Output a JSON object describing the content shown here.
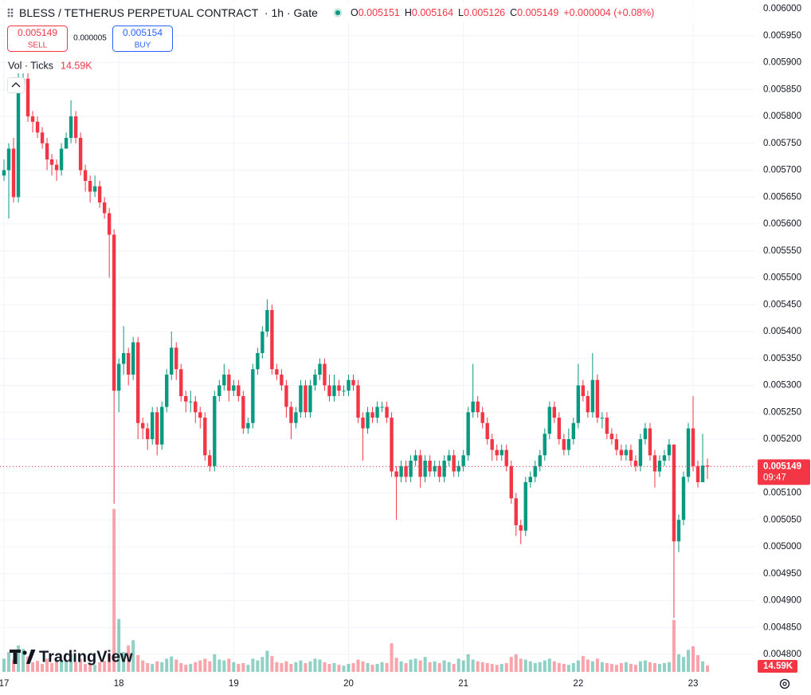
{
  "chart_data": {
    "type": "candlestick",
    "title": "BLESS / TETHERUS PERPETUAL CONTRACT",
    "interval": "1h",
    "exchange": "Gate",
    "ohlc_labels": [
      "O",
      "H",
      "L",
      "C"
    ],
    "change_label": "+0.000004 (+0.08%)",
    "sell_price": 0.005149,
    "sell_label": "SELL",
    "spread": {
      "value": 5e-06,
      "label": "0.000005"
    },
    "buy_price": 0.005154,
    "buy_label": "BUY",
    "volume_title": "Vol · Ticks",
    "countdown": "09:47",
    "watermark": "TradingView",
    "up_color": "#089981",
    "down_color": "#f23645",
    "grid": true,
    "ylim": [
      0.0048,
      0.006
    ],
    "yticks": [
      {
        "value": 0.006,
        "label": "0.006000"
      },
      {
        "value": 0.00595,
        "label": "0.005950"
      },
      {
        "value": 0.0059,
        "label": "0.005900"
      },
      {
        "value": 0.00585,
        "label": "0.005850"
      },
      {
        "value": 0.0058,
        "label": "0.005800"
      },
      {
        "value": 0.00575,
        "label": "0.005750"
      },
      {
        "value": 0.0057,
        "label": "0.005700"
      },
      {
        "value": 0.00565,
        "label": "0.005650"
      },
      {
        "value": 0.0056,
        "label": "0.005600"
      },
      {
        "value": 0.00555,
        "label": "0.005550"
      },
      {
        "value": 0.0055,
        "label": "0.005500"
      },
      {
        "value": 0.00545,
        "label": "0.005450"
      },
      {
        "value": 0.0054,
        "label": "0.005400"
      },
      {
        "value": 0.00535,
        "label": "0.005350"
      },
      {
        "value": 0.0053,
        "label": "0.005300"
      },
      {
        "value": 0.00525,
        "label": "0.005250"
      },
      {
        "value": 0.0052,
        "label": "0.005200"
      },
      {
        "value": 0.00515,
        "label": "0.005150"
      },
      {
        "value": 0.0051,
        "label": "0.005100"
      },
      {
        "value": 0.00505,
        "label": "0.005050"
      },
      {
        "value": 0.005,
        "label": "0.005000"
      },
      {
        "value": 0.00495,
        "label": "0.004950"
      },
      {
        "value": 0.0049,
        "label": "0.004900"
      },
      {
        "value": 0.00485,
        "label": "0.004850"
      },
      {
        "value": 0.0048,
        "label": "0.004800"
      }
    ],
    "categories": [
      "17",
      null,
      null,
      null,
      null,
      null,
      null,
      null,
      null,
      null,
      null,
      null,
      null,
      null,
      null,
      null,
      null,
      null,
      null,
      null,
      null,
      null,
      null,
      null,
      "18",
      null,
      null,
      null,
      null,
      null,
      null,
      null,
      null,
      null,
      null,
      null,
      null,
      null,
      null,
      null,
      null,
      null,
      null,
      null,
      null,
      null,
      null,
      null,
      "19",
      null,
      null,
      null,
      null,
      null,
      null,
      null,
      null,
      null,
      null,
      null,
      null,
      null,
      null,
      null,
      null,
      null,
      null,
      null,
      null,
      null,
      null,
      null,
      "20",
      null,
      null,
      null,
      null,
      null,
      null,
      null,
      null,
      null,
      null,
      null,
      null,
      null,
      null,
      null,
      null,
      null,
      null,
      null,
      null,
      null,
      null,
      null,
      "21",
      null,
      null,
      null,
      null,
      null,
      null,
      null,
      null,
      null,
      null,
      null,
      null,
      null,
      null,
      null,
      null,
      null,
      null,
      null,
      null,
      null,
      null,
      null,
      "22",
      null,
      null,
      null,
      null,
      null,
      null,
      null,
      null,
      null,
      null,
      null,
      null,
      null,
      null,
      null,
      null,
      null,
      null,
      null,
      null,
      null,
      null,
      null,
      "23",
      null,
      null,
      null
    ],
    "open": [
      0.00569,
      0.0057,
      0.00574,
      0.00565,
      0.00586,
      0.00587,
      0.0058,
      0.00579,
      0.00577,
      0.00575,
      0.00572,
      0.00571,
      0.0057,
      0.00574,
      0.00576,
      0.0058,
      0.00576,
      0.0057,
      0.00568,
      0.00566,
      0.00567,
      0.00564,
      0.00562,
      0.00558,
      0.00529,
      0.00534,
      0.00536,
      0.00532,
      0.00538,
      0.00523,
      0.00522,
      0.0052,
      0.00525,
      0.00519,
      0.00526,
      0.00532,
      0.00537,
      0.00533,
      0.00528,
      0.00527,
      0.00527,
      0.00525,
      0.00524,
      0.00517,
      0.00515,
      0.00528,
      0.0053,
      0.00532,
      0.00529,
      0.0053,
      0.00528,
      0.00522,
      0.00523,
      0.00533,
      0.00536,
      0.0054,
      0.00544,
      0.00533,
      0.00532,
      0.0053,
      0.00526,
      0.00523,
      0.00525,
      0.0053,
      0.00525,
      0.0053,
      0.00532,
      0.00534,
      0.0053,
      0.00528,
      0.0053,
      0.00529,
      0.00529,
      0.00531,
      0.0053,
      0.00524,
      0.00522,
      0.00525,
      0.00524,
      0.00526,
      0.00526,
      0.00524,
      0.00514,
      0.00513,
      0.00515,
      0.00513,
      0.00516,
      0.00517,
      0.00513,
      0.00516,
      0.00514,
      0.00515,
      0.00513,
      0.00516,
      0.00517,
      0.00514,
      0.00515,
      0.00517,
      0.00525,
      0.00527,
      0.00525,
      0.00523,
      0.0052,
      0.00518,
      0.00517,
      0.00518,
      0.00515,
      0.00509,
      0.00504,
      0.00503,
      0.00512,
      0.00513,
      0.00515,
      0.00517,
      0.00521,
      0.00526,
      0.00524,
      0.0052,
      0.00518,
      0.0052,
      0.00523,
      0.0053,
      0.00528,
      0.00525,
      0.00531,
      0.00524,
      0.00524,
      0.00521,
      0.0052,
      0.00518,
      0.00517,
      0.00518,
      0.00516,
      0.00515,
      0.0052,
      0.00522,
      0.00517,
      0.00514,
      0.00516,
      0.00517,
      0.00519,
      0.00501,
      0.00505,
      0.00513,
      0.00522,
      0.00515,
      0.00512,
      0.005151
    ],
    "high": [
      0.00572,
      0.00575,
      0.00576,
      0.00588,
      0.00588,
      0.00588,
      0.00581,
      0.0058,
      0.00578,
      0.00576,
      0.00573,
      0.00572,
      0.00575,
      0.00577,
      0.00583,
      0.00581,
      0.00577,
      0.00571,
      0.00569,
      0.00569,
      0.00568,
      0.00565,
      0.00563,
      0.00559,
      0.00535,
      0.00541,
      0.00537,
      0.00539,
      0.00539,
      0.00524,
      0.00523,
      0.00526,
      0.00526,
      0.00527,
      0.00533,
      0.0054,
      0.00538,
      0.00534,
      0.00529,
      0.00529,
      0.00528,
      0.00526,
      0.00525,
      0.00518,
      0.00529,
      0.00531,
      0.00534,
      0.00533,
      0.00531,
      0.00531,
      0.00529,
      0.00524,
      0.00534,
      0.00537,
      0.00541,
      0.00546,
      0.00545,
      0.00534,
      0.00533,
      0.00531,
      0.00527,
      0.00526,
      0.00531,
      0.00531,
      0.00531,
      0.00533,
      0.00535,
      0.00535,
      0.00532,
      0.00532,
      0.00531,
      0.0053,
      0.00532,
      0.00532,
      0.00531,
      0.00525,
      0.00526,
      0.00526,
      0.00527,
      0.00527,
      0.00527,
      0.00525,
      0.00515,
      0.00516,
      0.00516,
      0.00517,
      0.00518,
      0.00518,
      0.00517,
      0.00517,
      0.00516,
      0.00516,
      0.00517,
      0.00518,
      0.00518,
      0.00516,
      0.00518,
      0.00526,
      0.00534,
      0.00528,
      0.00526,
      0.00524,
      0.00521,
      0.00519,
      0.00519,
      0.00519,
      0.00516,
      0.0051,
      0.00505,
      0.00513,
      0.00514,
      0.00516,
      0.00518,
      0.00522,
      0.00527,
      0.00527,
      0.00525,
      0.00521,
      0.00522,
      0.00524,
      0.00534,
      0.00531,
      0.00529,
      0.00536,
      0.00532,
      0.00525,
      0.00525,
      0.00522,
      0.00521,
      0.00519,
      0.00519,
      0.00519,
      0.00517,
      0.00521,
      0.00523,
      0.00523,
      0.00518,
      0.00517,
      0.00518,
      0.0052,
      0.00519,
      0.00506,
      0.00514,
      0.00523,
      0.00528,
      0.00516,
      0.00521,
      0.005164
    ],
    "low": [
      0.00568,
      0.00561,
      0.00564,
      0.00564,
      0.00585,
      0.00579,
      0.00577,
      0.00576,
      0.00574,
      0.0057,
      0.00569,
      0.00568,
      0.00569,
      0.00574,
      0.00575,
      0.00575,
      0.00569,
      0.00566,
      0.00564,
      0.00565,
      0.00563,
      0.00561,
      0.0055,
      0.00508,
      0.00525,
      0.00532,
      0.0053,
      0.00531,
      0.0052,
      0.0052,
      0.00518,
      0.00519,
      0.00517,
      0.00518,
      0.00525,
      0.00531,
      0.00531,
      0.00527,
      0.00525,
      0.00525,
      0.00523,
      0.00522,
      0.00516,
      0.00514,
      0.00514,
      0.00527,
      0.00529,
      0.00527,
      0.00528,
      0.00527,
      0.00521,
      0.00521,
      0.00522,
      0.00532,
      0.00535,
      0.00539,
      0.00532,
      0.00531,
      0.00529,
      0.00524,
      0.0052,
      0.00522,
      0.00524,
      0.00524,
      0.00524,
      0.00529,
      0.00531,
      0.00529,
      0.00527,
      0.00527,
      0.00528,
      0.00528,
      0.00528,
      0.00529,
      0.00523,
      0.00516,
      0.00521,
      0.00523,
      0.00523,
      0.00525,
      0.00523,
      0.00513,
      0.00505,
      0.00512,
      0.00512,
      0.00512,
      0.00515,
      0.00511,
      0.00512,
      0.00513,
      0.00513,
      0.00512,
      0.00512,
      0.00515,
      0.00513,
      0.00513,
      0.00514,
      0.00516,
      0.00524,
      0.00524,
      0.00522,
      0.00519,
      0.00516,
      0.00516,
      0.00516,
      0.00514,
      0.00508,
      0.00502,
      0.005005,
      0.00502,
      0.00511,
      0.00512,
      0.00514,
      0.00516,
      0.0052,
      0.00523,
      0.00519,
      0.00517,
      0.00517,
      0.00519,
      0.00522,
      0.00527,
      0.00524,
      0.00524,
      0.00523,
      0.00522,
      0.0052,
      0.00519,
      0.00517,
      0.00516,
      0.00516,
      0.00515,
      0.00514,
      0.00514,
      0.00519,
      0.00516,
      0.00511,
      0.00513,
      0.00515,
      0.00516,
      0.004868,
      0.00499,
      0.00504,
      0.00512,
      0.00514,
      0.00511,
      0.00512,
      0.005126
    ],
    "close": [
      0.0057,
      0.00574,
      0.00565,
      0.00586,
      0.00587,
      0.0058,
      0.00579,
      0.00577,
      0.00575,
      0.00572,
      0.00571,
      0.0057,
      0.00574,
      0.00576,
      0.0058,
      0.00576,
      0.0057,
      0.00568,
      0.00566,
      0.00567,
      0.00564,
      0.00562,
      0.00558,
      0.00529,
      0.00534,
      0.00536,
      0.00532,
      0.00538,
      0.00523,
      0.00522,
      0.0052,
      0.00525,
      0.00519,
      0.00526,
      0.00532,
      0.00537,
      0.00533,
      0.00528,
      0.00527,
      0.00527,
      0.00525,
      0.00524,
      0.00517,
      0.00515,
      0.00528,
      0.0053,
      0.00532,
      0.00529,
      0.0053,
      0.00528,
      0.00522,
      0.00523,
      0.00533,
      0.00536,
      0.0054,
      0.00544,
      0.00533,
      0.00532,
      0.0053,
      0.00526,
      0.00523,
      0.00525,
      0.0053,
      0.00525,
      0.0053,
      0.00532,
      0.00534,
      0.0053,
      0.00528,
      0.0053,
      0.00529,
      0.00529,
      0.00531,
      0.0053,
      0.00524,
      0.00522,
      0.00525,
      0.00524,
      0.00526,
      0.00526,
      0.00524,
      0.00514,
      0.00513,
      0.00515,
      0.00513,
      0.00516,
      0.00517,
      0.00513,
      0.00516,
      0.00514,
      0.00515,
      0.00513,
      0.00516,
      0.00517,
      0.00514,
      0.00515,
      0.00517,
      0.00525,
      0.00527,
      0.00525,
      0.00523,
      0.0052,
      0.00518,
      0.00517,
      0.00518,
      0.00515,
      0.00509,
      0.00504,
      0.00503,
      0.00512,
      0.00513,
      0.00515,
      0.00517,
      0.00521,
      0.00526,
      0.00524,
      0.0052,
      0.00518,
      0.0052,
      0.00523,
      0.0053,
      0.00528,
      0.00525,
      0.00531,
      0.00524,
      0.00524,
      0.00521,
      0.0052,
      0.00518,
      0.00517,
      0.00518,
      0.00516,
      0.00515,
      0.0052,
      0.00522,
      0.00517,
      0.00514,
      0.00516,
      0.00517,
      0.00519,
      0.00501,
      0.00505,
      0.00513,
      0.00522,
      0.00515,
      0.00512,
      0.005151,
      0.005149
    ],
    "volume": {
      "ylim": [
        0,
        380000
      ],
      "last_label": "14.59K",
      "values": [
        30000,
        45000,
        28000,
        60000,
        52000,
        35000,
        22000,
        25000,
        18000,
        30000,
        20000,
        24000,
        28000,
        26000,
        40000,
        22000,
        30000,
        18000,
        20000,
        16000,
        22000,
        25000,
        40000,
        370000,
        120000,
        45000,
        60000,
        72000,
        38000,
        26000,
        20000,
        18000,
        24000,
        22000,
        30000,
        35000,
        28000,
        20000,
        16000,
        18000,
        22000,
        26000,
        30000,
        24000,
        40000,
        28000,
        26000,
        30000,
        22000,
        18000,
        20000,
        16000,
        30000,
        26000,
        34000,
        48000,
        36000,
        22000,
        20000,
        24000,
        18000,
        22000,
        26000,
        20000,
        24000,
        30000,
        28000,
        22000,
        18000,
        20000,
        16000,
        14000,
        18000,
        20000,
        28000,
        24000,
        20000,
        16000,
        18000,
        22000,
        20000,
        65000,
        32000,
        24000,
        20000,
        28000,
        30000,
        26000,
        34000,
        22000,
        24000,
        20000,
        26000,
        22000,
        18000,
        30000,
        26000,
        40000,
        28000,
        24000,
        22000,
        20000,
        18000,
        16000,
        18000,
        20000,
        34000,
        40000,
        30000,
        28000,
        24000,
        20000,
        22000,
        26000,
        30000,
        24000,
        20000,
        18000,
        16000,
        20000,
        26000,
        36000,
        28000,
        24000,
        30000,
        22000,
        20000,
        18000,
        16000,
        20000,
        22000,
        18000,
        16000,
        24000,
        26000,
        22000,
        20000,
        18000,
        20000,
        22000,
        118000,
        40000,
        34000,
        50000,
        58000,
        38000,
        24000,
        14590
      ]
    }
  }
}
